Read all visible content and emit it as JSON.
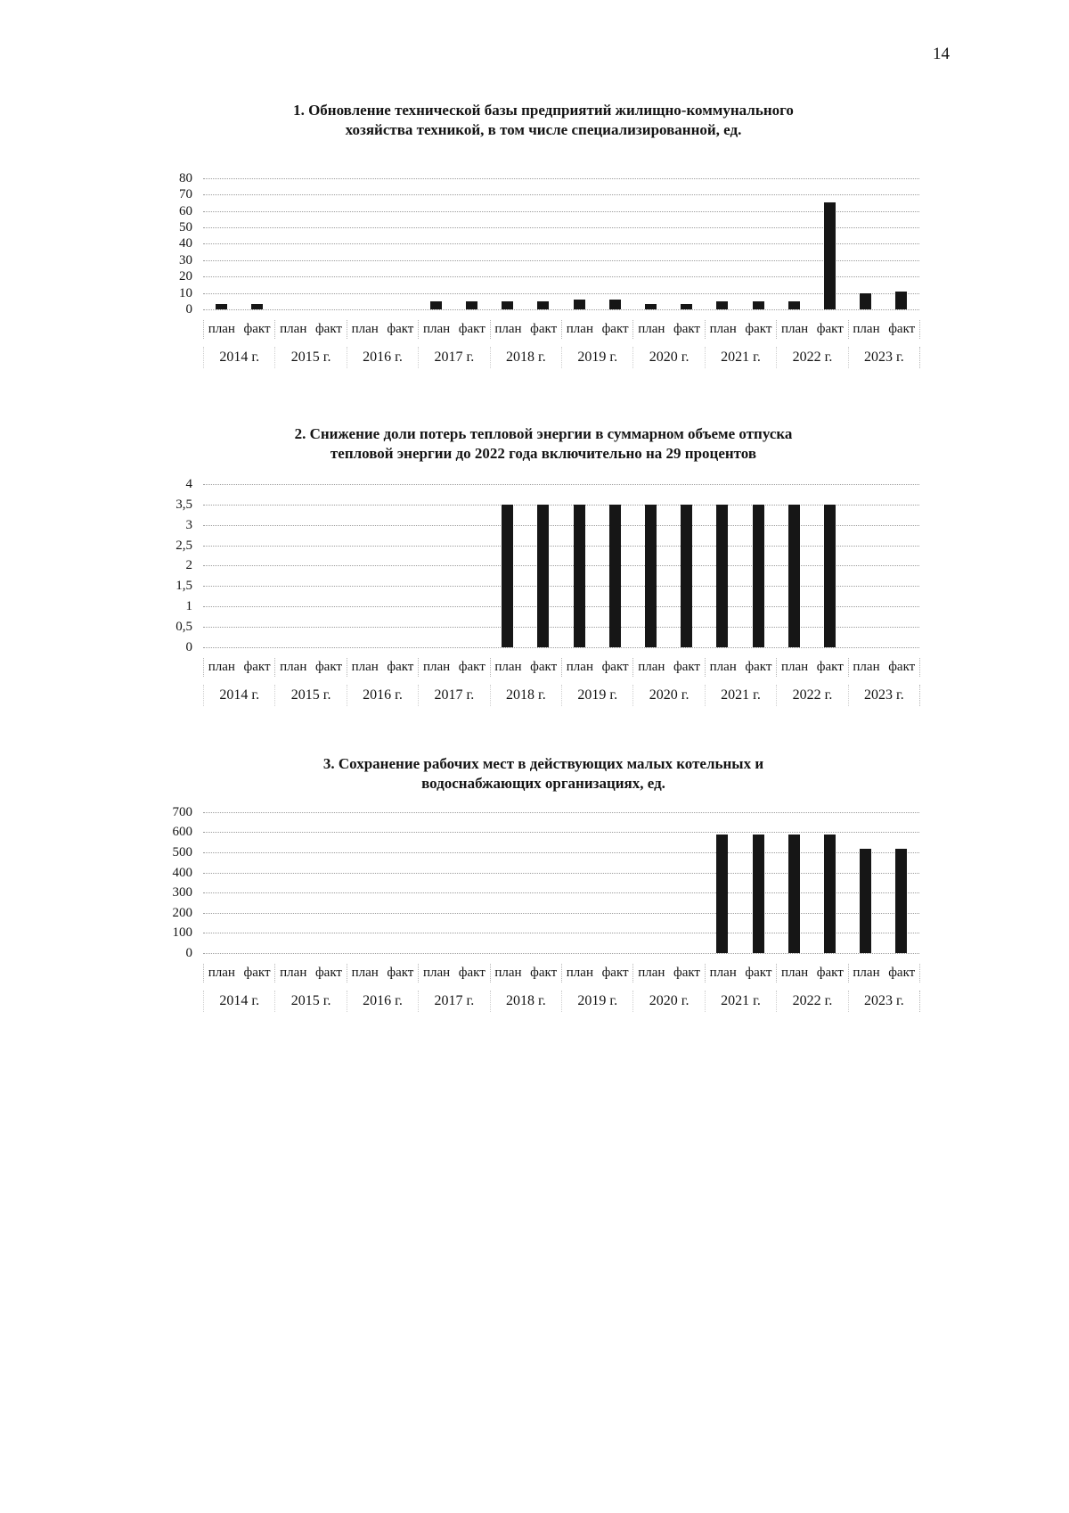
{
  "page": {
    "number": "14"
  },
  "chart_data": [
    {
      "type": "bar",
      "title": "1. Обновление технической базы предприятий жилищно-коммунального хозяйства техникой, в том числе специализированной, ед.",
      "title_lines": [
        "1. Обновление технической базы предприятий жилищно-коммунального",
        "хозяйства техникой, в том числе специализированной, ед."
      ],
      "categories": [
        "2014 г.",
        "2015 г.",
        "2016 г.",
        "2017 г.",
        "2018 г.",
        "2019 г.",
        "2020 г.",
        "2021 г.",
        "2022 г.",
        "2023 г."
      ],
      "series": [
        {
          "name": "план",
          "values": [
            3,
            0,
            0,
            5,
            5,
            6,
            3,
            5,
            5,
            10
          ]
        },
        {
          "name": "факт",
          "values": [
            3,
            0,
            0,
            5,
            5,
            6,
            3,
            5,
            65,
            11
          ]
        }
      ],
      "ylim": [
        0,
        80
      ],
      "ytick_labels": [
        "80",
        "70",
        "60",
        "50",
        "40",
        "30",
        "20",
        "10",
        "0"
      ],
      "grid": true,
      "legend": "none",
      "bar_color": "#161616"
    },
    {
      "type": "bar",
      "title": "2. Снижение доли потерь тепловой энергии в суммарном объеме отпуска тепловой энергии до 2022 года включительно на 29 процентов",
      "title_lines": [
        "2. Снижение доли потерь тепловой энергии в суммарном объеме отпуска",
        "тепловой энергии до 2022 года включительно на 29 процентов"
      ],
      "categories": [
        "2014 г.",
        "2015 г.",
        "2016 г.",
        "2017 г.",
        "2018 г.",
        "2019 г.",
        "2020 г.",
        "2021 г.",
        "2022 г.",
        "2023 г."
      ],
      "series": [
        {
          "name": "план",
          "values": [
            0,
            0,
            0,
            0,
            3.5,
            3.5,
            3.5,
            3.5,
            3.5,
            0
          ]
        },
        {
          "name": "факт",
          "values": [
            0,
            0,
            0,
            0,
            3.5,
            3.5,
            3.5,
            3.5,
            3.5,
            0
          ]
        }
      ],
      "ylim": [
        0,
        4
      ],
      "ytick_labels": [
        "4",
        "3,5",
        "3",
        "2,5",
        "2",
        "1,5",
        "1",
        "0,5",
        "0"
      ],
      "grid": true,
      "legend": "none",
      "bar_color": "#161616"
    },
    {
      "type": "bar",
      "title": "3. Сохранение рабочих мест в действующих малых котельных и водоснабжающих организациях, ед.",
      "title_lines": [
        "3. Сохранение рабочих мест в действующих малых котельных и",
        "водоснабжающих организациях, ед."
      ],
      "categories": [
        "2014 г.",
        "2015 г.",
        "2016 г.",
        "2017 г.",
        "2018 г.",
        "2019 г.",
        "2020 г.",
        "2021 г.",
        "2022 г.",
        "2023 г."
      ],
      "series": [
        {
          "name": "план",
          "values": [
            0,
            0,
            0,
            0,
            0,
            0,
            0,
            590,
            590,
            520
          ]
        },
        {
          "name": "факт",
          "values": [
            0,
            0,
            0,
            0,
            0,
            0,
            0,
            590,
            590,
            520
          ]
        }
      ],
      "ylim": [
        0,
        700
      ],
      "ytick_labels": [
        "700",
        "600",
        "500",
        "400",
        "300",
        "200",
        "100",
        "0"
      ],
      "grid": true,
      "legend": "none",
      "bar_color": "#161616"
    }
  ]
}
